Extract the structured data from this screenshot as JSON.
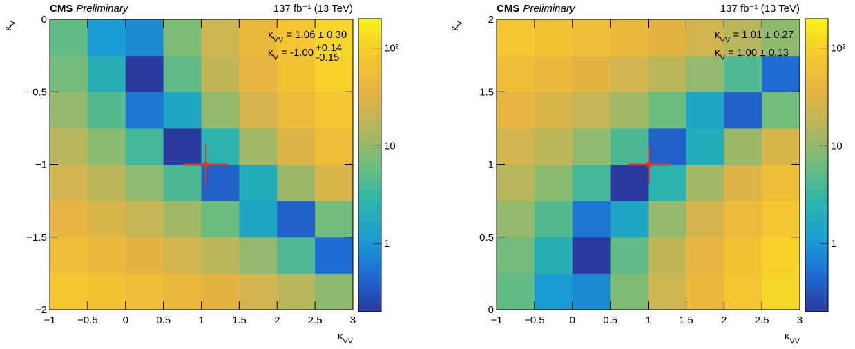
{
  "chart_data": [
    {
      "type": "heatmap",
      "header": {
        "experiment": "CMS",
        "status": "Preliminary",
        "lumi": "137 fb⁻¹ (13 TeV)"
      },
      "x_label": {
        "symbol": "κ",
        "sub": "VV"
      },
      "y_label": {
        "symbol": "κ",
        "sub": "V"
      },
      "result": [
        {
          "symbol": "κ",
          "sub": "VV",
          "text": " = 1.06 ± 0.30"
        },
        {
          "symbol": "κ",
          "sub": "V",
          "text": " = -1.00",
          "up": "+0.14",
          "down": "-0.15"
        }
      ],
      "best_fit": {
        "x": 1.06,
        "xerr": 0.3,
        "y": -1.0,
        "yerr_up": 0.14,
        "yerr_down": 0.15,
        "color": "#e8302a"
      },
      "xbins": [
        -1,
        -0.5,
        0,
        0.5,
        1,
        1.5,
        2,
        2.5,
        3
      ],
      "ybins": [
        -2,
        -1.75,
        -1.5,
        -1.25,
        -1,
        -0.75,
        -0.5,
        -0.25,
        0
      ],
      "z": [
        [
          79,
          67,
          55,
          44,
          34,
          25,
          16,
          9.5
        ],
        [
          56,
          45,
          34,
          25,
          17,
          9.9,
          4.2,
          0.5
        ],
        [
          38,
          28,
          20,
          12,
          6.1,
          1.5,
          0.4,
          6.7
        ],
        [
          25,
          17,
          9.7,
          4.1,
          0.4,
          1.9,
          11,
          28
        ],
        [
          16,
          9.1,
          3.6,
          0.2,
          2.5,
          12,
          30,
          55
        ],
        [
          10,
          4.5,
          0.6,
          1.5,
          10,
          26,
          50,
          81
        ],
        [
          6.9,
          2.1,
          0.2,
          5.3,
          18,
          38,
          66,
          101
        ],
        [
          5.4,
          1.1,
          0.8,
          8,
          23,
          45,
          75,
          112
        ]
      ],
      "xlim": [
        -1,
        3
      ],
      "xticks": [
        {
          "value": -1,
          "label": "−1"
        },
        {
          "value": -0.5,
          "label": "−0.5"
        },
        0,
        0.5,
        1,
        1.5,
        2,
        2.5,
        3
      ],
      "ylim": [
        -2,
        0
      ],
      "yticks": [
        {
          "value": -2,
          "label": "−2"
        },
        {
          "value": -1.5,
          "label": "−1.5"
        },
        {
          "value": -1,
          "label": "−1"
        },
        {
          "value": -0.5,
          "label": "−0.5"
        },
        0
      ],
      "zlim": [
        0.2,
        200
      ],
      "zticks": [
        1,
        10,
        {
          "value": 100,
          "label": "10²"
        }
      ],
      "zlog": true,
      "colormap": [
        "#2b3a9e",
        "#1f6ad4",
        "#1b9dd2",
        "#2cb5aa",
        "#6dbd7d",
        "#b4b65e",
        "#e6b443",
        "#f6c72e",
        "#f7f51c"
      ]
    },
    {
      "type": "heatmap",
      "header": {
        "experiment": "CMS",
        "status": "Preliminary",
        "lumi": "137 fb⁻¹ (13 TeV)"
      },
      "x_label": {
        "symbol": "κ",
        "sub": "VV"
      },
      "y_label": {
        "symbol": "κ",
        "sub": "V"
      },
      "result": [
        {
          "symbol": "κ",
          "sub": "VV",
          "text": " = 1.01 ± 0.27"
        },
        {
          "symbol": "κ",
          "sub": "V",
          "text": " = 1.00 ± 0.13"
        }
      ],
      "best_fit": {
        "x": 1.01,
        "xerr": 0.27,
        "y": 1.0,
        "yerr_up": 0.13,
        "yerr_down": 0.13,
        "color": "#e8302a"
      },
      "xbins": [
        -1,
        -0.5,
        0,
        0.5,
        1,
        1.5,
        2,
        2.5,
        3
      ],
      "ybins": [
        0,
        0.25,
        0.5,
        0.75,
        1,
        1.25,
        1.5,
        1.75,
        2
      ],
      "z": [
        [
          5.4,
          1.1,
          0.8,
          8,
          23,
          45,
          75,
          112
        ],
        [
          6.9,
          2.1,
          0.2,
          5.3,
          18,
          38,
          66,
          101
        ],
        [
          10,
          4.5,
          0.6,
          1.5,
          10,
          26,
          50,
          81
        ],
        [
          16,
          9.1,
          3.6,
          0.2,
          2.5,
          12,
          30,
          55
        ],
        [
          25,
          17,
          9.7,
          4.1,
          0.4,
          1.9,
          11,
          28
        ],
        [
          38,
          28,
          20,
          12,
          6.1,
          1.5,
          0.4,
          6.7
        ],
        [
          56,
          45,
          34,
          25,
          17,
          9.9,
          4.2,
          0.5
        ],
        [
          79,
          67,
          55,
          44,
          34,
          25,
          16,
          9.5
        ]
      ],
      "xlim": [
        -1,
        3
      ],
      "xticks": [
        {
          "value": -1,
          "label": "−1"
        },
        {
          "value": -0.5,
          "label": "−0.5"
        },
        0,
        0.5,
        1,
        1.5,
        2,
        2.5,
        3
      ],
      "ylim": [
        0,
        2
      ],
      "yticks": [
        0,
        0.5,
        1,
        1.5,
        2
      ],
      "zlim": [
        0.2,
        200
      ],
      "zticks": [
        1,
        10,
        {
          "value": 100,
          "label": "10²"
        }
      ],
      "zlog": true,
      "colormap": [
        "#2b3a9e",
        "#1f6ad4",
        "#1b9dd2",
        "#2cb5aa",
        "#6dbd7d",
        "#b4b65e",
        "#e6b443",
        "#f6c72e",
        "#f7f51c"
      ]
    }
  ]
}
